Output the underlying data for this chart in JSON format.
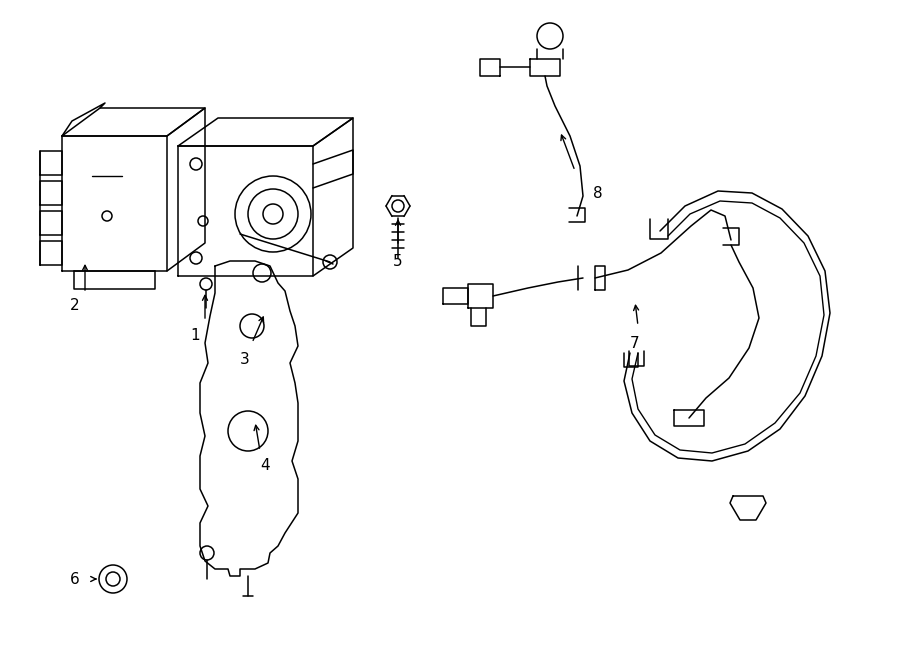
{
  "background_color": "#ffffff",
  "line_color": "#000000",
  "figure_width": 9.0,
  "figure_height": 6.61,
  "dpi": 100
}
